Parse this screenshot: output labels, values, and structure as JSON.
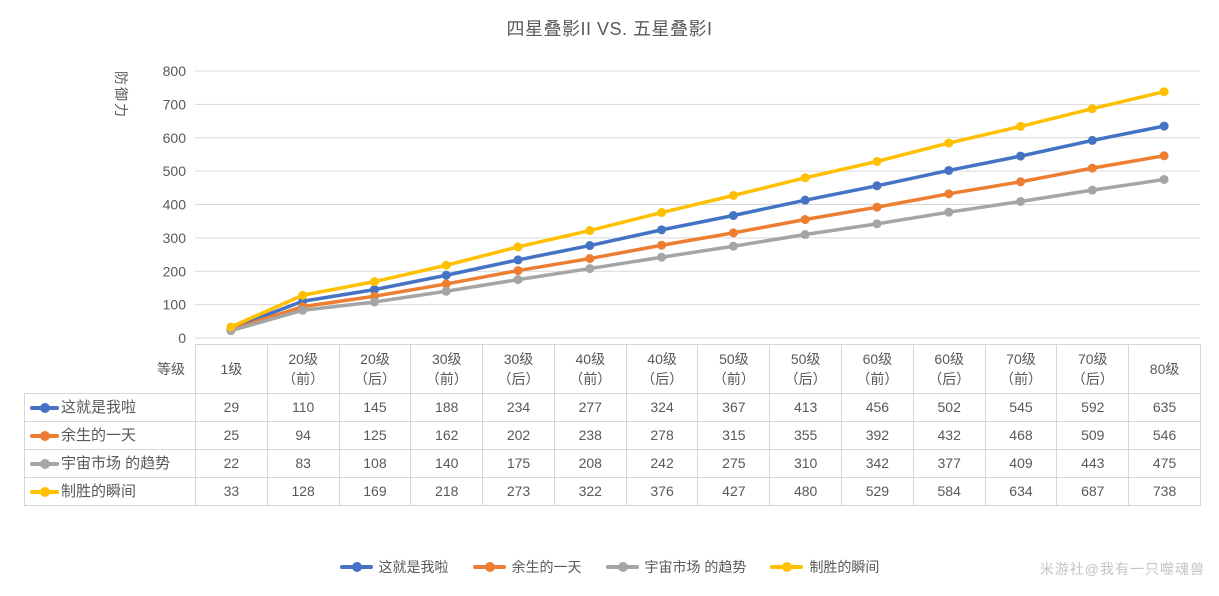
{
  "title": "四星叠影II VS. 五星叠影I",
  "watermark": "米游社@我有一只噬魂兽",
  "colors": {
    "series_blue": "#4472C4",
    "series_orange": "#ED7D31",
    "series_gray": "#A5A5A5",
    "series_yellow": "#FFC000",
    "gridline": "#d9d9d9",
    "axis_text": "#595959",
    "table_border": "#d6d6d6",
    "table_text": "#595959",
    "title_text": "#595959",
    "watermark_text": "#c4c4c4"
  },
  "chart_data": {
    "type": "line",
    "title": "四星叠影II VS. 五星叠影I",
    "x_axis_title": "等级",
    "y_axis_title": "防御力",
    "ylim": [
      0,
      800
    ],
    "ytick_step": 100,
    "grid": true,
    "legend_position": "bottom",
    "categories": [
      "1级",
      "20级\n（前）",
      "20级\n（后）",
      "30级\n（前）",
      "30级\n（后）",
      "40级\n（前）",
      "40级\n（后）",
      "50级\n（前）",
      "50级\n（后）",
      "60级\n（前）",
      "60级\n（后）",
      "70级\n（前）",
      "70级\n（后）",
      "80级"
    ],
    "series": [
      {
        "name": "这就是我啦",
        "color": "#4472C4",
        "values": [
          29,
          110,
          145,
          188,
          234,
          277,
          324,
          367,
          413,
          456,
          502,
          545,
          592,
          635
        ]
      },
      {
        "name": "余生的一天",
        "color": "#ED7D31",
        "values": [
          25,
          94,
          125,
          162,
          202,
          238,
          278,
          315,
          355,
          392,
          432,
          468,
          509,
          546
        ]
      },
      {
        "name": "宇宙市场 的趋势",
        "color": "#A5A5A5",
        "values": [
          22,
          83,
          108,
          140,
          175,
          208,
          242,
          275,
          310,
          342,
          377,
          409,
          443,
          475
        ]
      },
      {
        "name": "制胜的瞬间",
        "color": "#FFC000",
        "values": [
          33,
          128,
          169,
          218,
          273,
          322,
          376,
          427,
          480,
          529,
          584,
          634,
          687,
          738
        ]
      }
    ]
  }
}
